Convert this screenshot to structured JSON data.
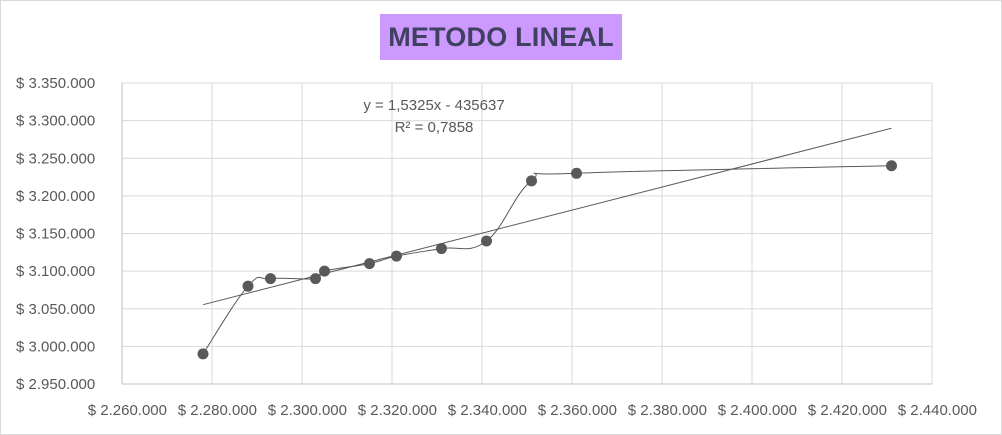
{
  "chart_data": {
    "type": "scatter",
    "title": "METODO LINEAL",
    "title_background": "#cc99ff",
    "xlabel": "",
    "ylabel": "",
    "xlim": [
      2260000,
      2440000
    ],
    "ylim": [
      2950000,
      3350000
    ],
    "x_ticks": [
      2260000,
      2280000,
      2300000,
      2320000,
      2340000,
      2360000,
      2380000,
      2400000,
      2420000,
      2440000
    ],
    "y_ticks": [
      2950000,
      3000000,
      3050000,
      3100000,
      3150000,
      3200000,
      3250000,
      3300000,
      3350000
    ],
    "x_tick_labels": [
      "$ 2.260.000",
      "$ 2.280.000",
      "$ 2.300.000",
      "$ 2.320.000",
      "$ 2.340.000",
      "$ 2.360.000",
      "$ 2.380.000",
      "$ 2.400.000",
      "$ 2.420.000",
      "$ 2.440.000"
    ],
    "y_tick_labels": [
      "$ 2.950.000",
      "$ 3.000.000",
      "$ 3.050.000",
      "$ 3.100.000",
      "$ 3.150.000",
      "$ 3.200.000",
      "$ 3.250.000",
      "$ 3.300.000",
      "$ 3.350.000"
    ],
    "grid": true,
    "series": [
      {
        "x": [
          2278000,
          2288000,
          2293000,
          2303000,
          2305000,
          2315000,
          2321000,
          2331000,
          2341000,
          2351000,
          2361000,
          2431000
        ],
        "y": [
          2990000,
          3080000,
          3090000,
          3090000,
          3100000,
          3110000,
          3120000,
          3130000,
          3140000,
          3220000,
          3230000,
          3240000
        ],
        "color": "#595959"
      }
    ],
    "trendline": {
      "type": "linear",
      "x_range": [
        2278000,
        2431000
      ],
      "equation": "y = 1,5325x - 435637",
      "r_squared": "R² = 0,7858",
      "color": "#595959"
    }
  }
}
